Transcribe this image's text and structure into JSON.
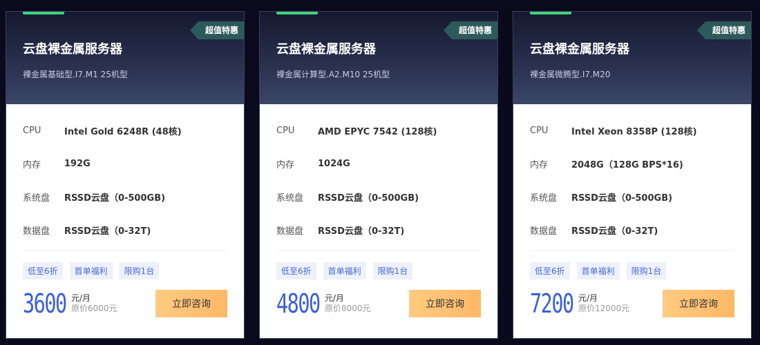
{
  "cards": [
    {
      "badge": "超值特惠",
      "title": "云盘裸金属服务器",
      "subtitle": "裸金属基础型.I7.M1 25机型",
      "specs": [
        {
          "label": "CPU",
          "value": "Intel Gold 6248R (48核)"
        },
        {
          "label": "内存",
          "value": "192G"
        },
        {
          "label": "系统盘",
          "value": "RSSD云盘（0-500GB)"
        },
        {
          "label": "数据盘",
          "value": "RSSD云盘（0-32T)"
        }
      ],
      "tags": [
        "低至6折",
        "首单福利",
        "限购1台"
      ],
      "price": "3600",
      "unit": "元/月",
      "original": "原价6000元",
      "button": "立即咨询"
    },
    {
      "badge": "超值特惠",
      "title": "云盘裸金属服务器",
      "subtitle": "裸金属计算型.A2.M10 25机型",
      "specs": [
        {
          "label": "CPU",
          "value": "AMD EPYC 7542 (128核)"
        },
        {
          "label": "内存",
          "value": "1024G"
        },
        {
          "label": "系统盘",
          "value": "RSSD云盘（0-500GB)"
        },
        {
          "label": "数据盘",
          "value": "RSSD云盘（0-32T)"
        }
      ],
      "tags": [
        "低至6折",
        "首单福利",
        "限购1台"
      ],
      "price": "4800",
      "unit": "元/月",
      "original": "原价8000元",
      "button": "立即咨询"
    },
    {
      "badge": "超值特惠",
      "title": "云盘裸金属服务器",
      "subtitle": "裸金属微腾型.I7.M20",
      "specs": [
        {
          "label": "CPU",
          "value": "Intel Xeon 8358P (128核)"
        },
        {
          "label": "内存",
          "value": "2048G（128G BPS*16)"
        },
        {
          "label": "系统盘",
          "value": "RSSD云盘（0-500GB)"
        },
        {
          "label": "数据盘",
          "value": "RSSD云盘（0-32T)"
        }
      ],
      "tags": [
        "低至6折",
        "首单福利",
        "限购1台"
      ],
      "price": "7200",
      "unit": "元/月",
      "original": "原价12000元",
      "button": "立即咨询"
    }
  ]
}
